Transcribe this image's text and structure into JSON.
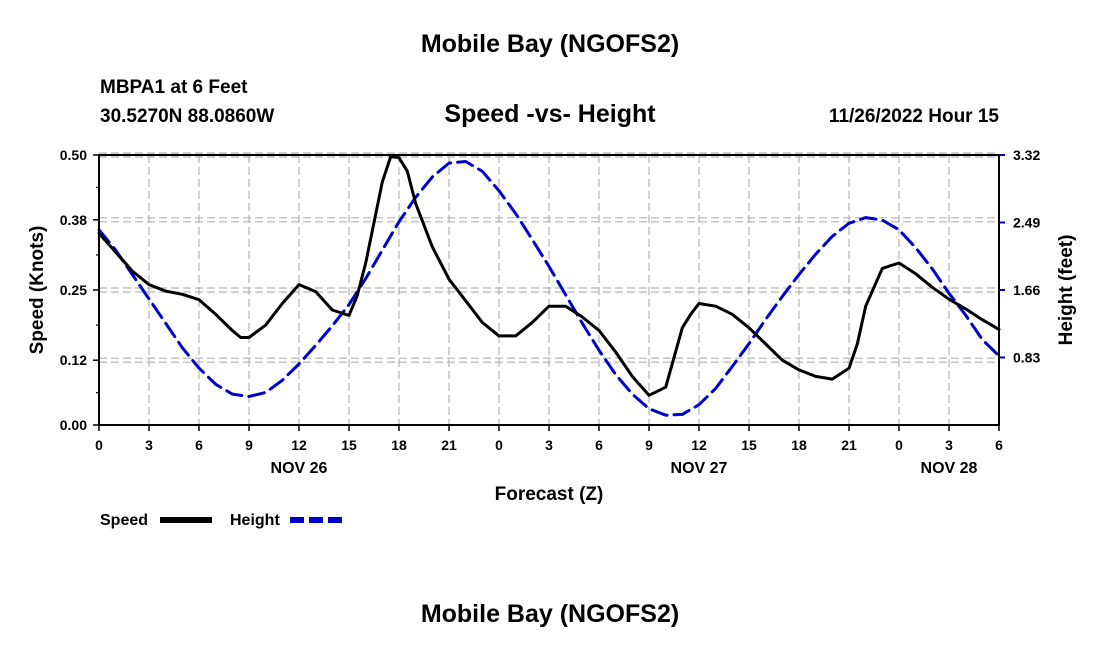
{
  "header": {
    "title": "Mobile Bay (NGOFS2)",
    "station": "MBPA1 at 6 Feet",
    "coords": "30.5270N  88.0860W",
    "subtitle": "Speed -vs- Height",
    "datetime": "11/26/2022 Hour 15",
    "footer_title": "Mobile Bay (NGOFS2)"
  },
  "chart_data": {
    "type": "line",
    "title": "Speed -vs- Height",
    "xlabel": "Forecast (Z)",
    "ylabel_left": "Speed (Knots)",
    "ylabel_right": "Height (feet)",
    "x_range_hours": [
      0,
      54
    ],
    "x_tick_step_hours": 3,
    "x_tick_labels": [
      "0",
      "3",
      "6",
      "9",
      "12",
      "15",
      "18",
      "21",
      "0",
      "3",
      "6",
      "9",
      "12",
      "15",
      "18",
      "21",
      "0",
      "3",
      "6"
    ],
    "date_labels": [
      {
        "label": "NOV 26",
        "hour": 12
      },
      {
        "label": "NOV 27",
        "hour": 36
      },
      {
        "label": "NOV 28",
        "hour": 51
      }
    ],
    "ylim_left": [
      0,
      0.5
    ],
    "yticks_left": [
      0.0,
      0.12,
      0.25,
      0.38,
      0.5
    ],
    "ytick_labels_left": [
      "0.00",
      "0.12",
      "0.25",
      "0.38",
      "0.50"
    ],
    "ylim_right": [
      0,
      3.32
    ],
    "yticks_right": [
      0.83,
      1.66,
      2.49,
      3.32
    ],
    "ytick_labels_right": [
      "0.83",
      "1.66",
      "2.49",
      "3.32"
    ],
    "grid": true,
    "legend_position": "bottom-left",
    "series": [
      {
        "name": "Speed",
        "axis": "left",
        "color": "#000000",
        "style": "solid",
        "x": [
          0,
          1,
          2,
          3,
          4,
          5,
          6,
          7,
          8,
          8.5,
          9,
          10,
          11,
          12,
          13,
          14,
          15,
          15.5,
          16,
          17,
          17.5,
          18,
          18.5,
          19,
          20,
          21,
          22,
          23,
          24,
          25,
          26,
          27,
          28,
          29,
          30,
          31,
          32,
          33,
          34,
          35,
          35.5,
          36,
          37,
          38,
          39,
          40,
          41,
          42,
          43,
          44,
          45,
          45.5,
          46,
          47,
          48,
          49,
          50,
          51,
          52,
          53,
          54
        ],
        "y": [
          0.355,
          0.32,
          0.285,
          0.26,
          0.248,
          0.242,
          0.232,
          0.205,
          0.175,
          0.162,
          0.162,
          0.185,
          0.225,
          0.26,
          0.247,
          0.213,
          0.203,
          0.24,
          0.3,
          0.45,
          0.497,
          0.495,
          0.47,
          0.41,
          0.33,
          0.27,
          0.23,
          0.19,
          0.165,
          0.165,
          0.19,
          0.22,
          0.22,
          0.2,
          0.175,
          0.135,
          0.09,
          0.055,
          0.07,
          0.18,
          0.205,
          0.225,
          0.22,
          0.205,
          0.18,
          0.15,
          0.12,
          0.102,
          0.09,
          0.085,
          0.105,
          0.15,
          0.22,
          0.29,
          0.3,
          0.28,
          0.255,
          0.233,
          0.215,
          0.195,
          0.177
        ]
      },
      {
        "name": "Height",
        "axis": "right",
        "color": "#0000CC",
        "style": "dashed",
        "x": [
          0,
          1,
          2,
          3,
          4,
          5,
          6,
          7,
          8,
          9,
          10,
          11,
          12,
          13,
          14,
          15,
          16,
          17,
          18,
          19,
          20,
          21,
          22,
          23,
          24,
          25,
          26,
          27,
          28,
          29,
          30,
          31,
          32,
          33,
          34,
          35,
          36,
          37,
          38,
          39,
          40,
          41,
          42,
          43,
          44,
          45,
          46,
          47,
          48,
          49,
          50,
          51,
          52,
          53,
          54
        ],
        "y": [
          2.4,
          2.15,
          1.85,
          1.55,
          1.25,
          0.95,
          0.7,
          0.5,
          0.38,
          0.35,
          0.4,
          0.55,
          0.75,
          0.98,
          1.22,
          1.48,
          1.8,
          2.15,
          2.5,
          2.8,
          3.05,
          3.22,
          3.24,
          3.12,
          2.88,
          2.6,
          2.28,
          1.95,
          1.6,
          1.25,
          0.92,
          0.62,
          0.38,
          0.2,
          0.12,
          0.13,
          0.25,
          0.45,
          0.72,
          1.0,
          1.3,
          1.58,
          1.85,
          2.1,
          2.32,
          2.48,
          2.55,
          2.52,
          2.4,
          2.18,
          1.92,
          1.62,
          1.35,
          1.05,
          0.85
        ]
      }
    ]
  },
  "legend": {
    "speed_label": "Speed",
    "height_label": "Height"
  },
  "colors": {
    "speed": "#000000",
    "height": "#0000CC",
    "grid": "#b3b3b3"
  }
}
